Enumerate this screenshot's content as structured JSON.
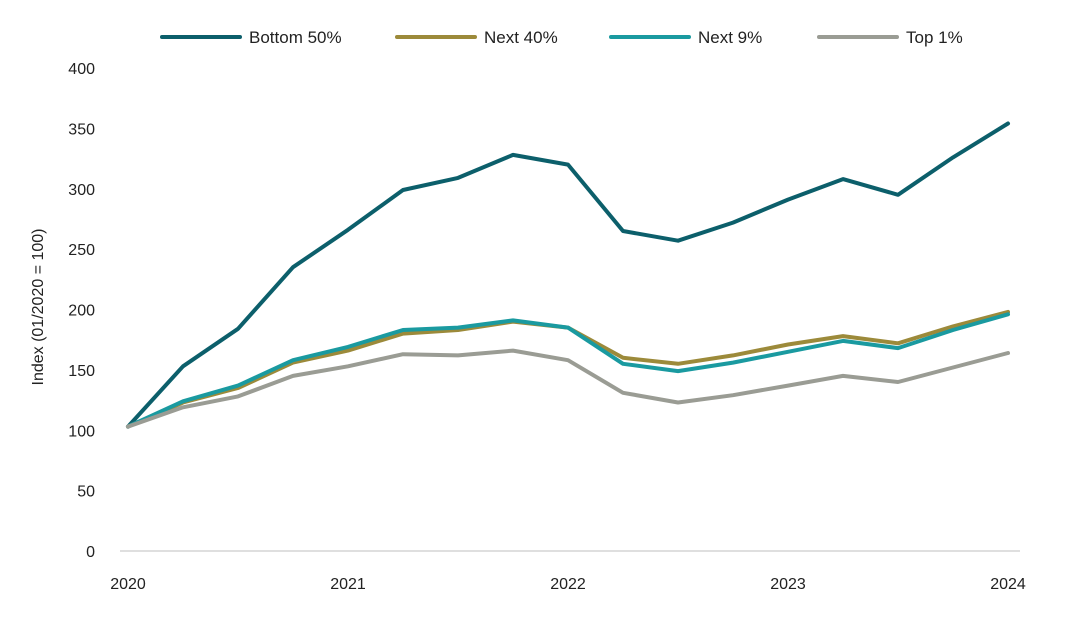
{
  "chart_data": {
    "type": "line",
    "title": "",
    "xlabel": "",
    "ylabel": "Index (01/2020 = 100)",
    "x_ticks": [
      "2020",
      "2021",
      "2022",
      "2023",
      "2024"
    ],
    "x_range": [
      2020.0,
      2024.0
    ],
    "y_ticks": [
      "0",
      "50",
      "100",
      "150",
      "200",
      "250",
      "300",
      "350",
      "400"
    ],
    "ylim": [
      0,
      400
    ],
    "grid": false,
    "legend_position": "top",
    "x": [
      2020.0,
      2020.25,
      2020.5,
      2020.75,
      2021.0,
      2021.25,
      2021.5,
      2021.75,
      2022.0,
      2022.25,
      2022.5,
      2022.75,
      2023.0,
      2023.25,
      2023.5,
      2023.75,
      2024.0
    ],
    "series": [
      {
        "name": "Bottom 50%",
        "color": "#0c5f6b",
        "values": [
          103,
          153,
          184,
          235,
          266,
          299,
          309,
          328,
          320,
          265,
          257,
          272,
          291,
          308,
          295,
          326,
          354
        ]
      },
      {
        "name": "Next 40%",
        "color": "#9c8a3a",
        "values": [
          103,
          123,
          135,
          156,
          166,
          180,
          183,
          190,
          185,
          160,
          155,
          162,
          171,
          178,
          172,
          186,
          198
        ]
      },
      {
        "name": "Next 9%",
        "color": "#1a9aa0",
        "values": [
          103,
          124,
          137,
          158,
          169,
          183,
          185,
          191,
          185,
          155,
          149,
          156,
          165,
          174,
          168,
          183,
          196
        ]
      },
      {
        "name": "Top 1%",
        "color": "#9a9c94",
        "values": [
          103,
          119,
          128,
          145,
          153,
          163,
          162,
          166,
          158,
          131,
          123,
          129,
          137,
          145,
          140,
          152,
          164
        ]
      }
    ]
  }
}
